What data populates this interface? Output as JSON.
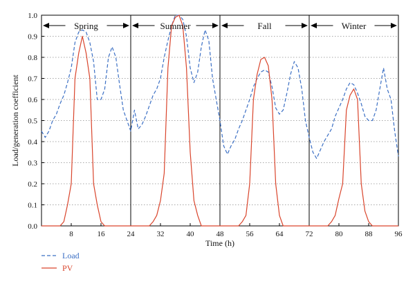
{
  "chart_data": {
    "type": "line",
    "xlabel": "Time (h)",
    "ylabel": "Load/generation coefficient",
    "xlim": [
      0,
      96
    ],
    "ylim": [
      0,
      1.0
    ],
    "x_ticks": [
      8,
      16,
      24,
      32,
      40,
      48,
      56,
      64,
      72,
      80,
      88,
      96
    ],
    "y_ticks": [
      "0.0",
      "0.1",
      "0.2",
      "0.3",
      "0.4",
      "0.5",
      "0.6",
      "0.7",
      "0.8",
      "0.9",
      "1.0"
    ],
    "grid": "horizontal dotted",
    "seasons": [
      {
        "label": "Spring",
        "start": 0,
        "end": 24
      },
      {
        "label": "Summer",
        "start": 24,
        "end": 48
      },
      {
        "label": "Fall",
        "start": 48,
        "end": 72
      },
      {
        "label": "Winter",
        "start": 72,
        "end": 96
      }
    ],
    "series": [
      {
        "name": "Load",
        "color": "#3b6fc4",
        "style": "dashed",
        "x": [
          0,
          1,
          2,
          3,
          4,
          5,
          6,
          7,
          8,
          9,
          10,
          11,
          12,
          13,
          14,
          15,
          16,
          17,
          18,
          19,
          20,
          21,
          22,
          23,
          24,
          25,
          26,
          27,
          28,
          29,
          30,
          31,
          32,
          33,
          34,
          35,
          36,
          37,
          38,
          39,
          40,
          41,
          42,
          43,
          44,
          45,
          46,
          47,
          48,
          49,
          50,
          51,
          52,
          53,
          54,
          55,
          56,
          57,
          58,
          59,
          60,
          61,
          62,
          63,
          64,
          65,
          66,
          67,
          68,
          69,
          70,
          71,
          72,
          73,
          74,
          75,
          76,
          77,
          78,
          79,
          80,
          81,
          82,
          83,
          84,
          85,
          86,
          87,
          88,
          89,
          90,
          91,
          92,
          93,
          94,
          95,
          96
        ],
        "values": [
          0.45,
          0.42,
          0.45,
          0.5,
          0.53,
          0.58,
          0.62,
          0.68,
          0.75,
          0.87,
          0.92,
          0.93,
          0.92,
          0.87,
          0.78,
          0.6,
          0.6,
          0.65,
          0.8,
          0.85,
          0.8,
          0.67,
          0.55,
          0.5,
          0.45,
          0.55,
          0.46,
          0.48,
          0.52,
          0.57,
          0.62,
          0.65,
          0.7,
          0.8,
          0.88,
          0.95,
          1.0,
          1.0,
          0.98,
          0.9,
          0.75,
          0.68,
          0.73,
          0.85,
          0.93,
          0.88,
          0.7,
          0.6,
          0.5,
          0.38,
          0.34,
          0.38,
          0.41,
          0.46,
          0.5,
          0.55,
          0.6,
          0.66,
          0.7,
          0.73,
          0.74,
          0.73,
          0.66,
          0.56,
          0.53,
          0.55,
          0.63,
          0.72,
          0.78,
          0.75,
          0.65,
          0.5,
          0.42,
          0.35,
          0.32,
          0.36,
          0.4,
          0.43,
          0.46,
          0.52,
          0.56,
          0.6,
          0.65,
          0.68,
          0.67,
          0.63,
          0.58,
          0.52,
          0.5,
          0.5,
          0.55,
          0.65,
          0.75,
          0.65,
          0.6,
          0.45,
          0.33
        ]
      },
      {
        "name": "PV",
        "color": "#d9442b",
        "style": "solid",
        "x": [
          0,
          5,
          6,
          7,
          8,
          9,
          10,
          11,
          12,
          13,
          14,
          15,
          16,
          17,
          18,
          19,
          24,
          29,
          30,
          31,
          32,
          33,
          34,
          35,
          36,
          37,
          38,
          39,
          40,
          41,
          42,
          43,
          48,
          53,
          54,
          55,
          56,
          57,
          58,
          59,
          60,
          61,
          62,
          63,
          64,
          65,
          66,
          67,
          72,
          77,
          78,
          79,
          80,
          81,
          82,
          83,
          84,
          85,
          86,
          87,
          88,
          89,
          90,
          91,
          96
        ],
        "values": [
          0,
          0,
          0.02,
          0.1,
          0.2,
          0.7,
          0.82,
          0.9,
          0.82,
          0.7,
          0.2,
          0.1,
          0.02,
          0,
          0,
          0,
          0,
          0,
          0.02,
          0.05,
          0.12,
          0.25,
          0.75,
          0.95,
          0.99,
          1.0,
          0.95,
          0.75,
          0.35,
          0.12,
          0.05,
          0,
          0,
          0,
          0.02,
          0.05,
          0.2,
          0.6,
          0.72,
          0.79,
          0.8,
          0.76,
          0.6,
          0.2,
          0.05,
          0,
          0,
          0,
          0,
          0,
          0.02,
          0.05,
          0.13,
          0.2,
          0.55,
          0.62,
          0.65,
          0.6,
          0.2,
          0.07,
          0.02,
          0,
          0,
          0,
          0
        ]
      }
    ],
    "legend": [
      {
        "label": "Load",
        "color": "#3b6fc4",
        "style": "dashed"
      },
      {
        "label": "PV",
        "color": "#d9442b",
        "style": "solid"
      }
    ],
    "legend_position": "bottom-left"
  }
}
